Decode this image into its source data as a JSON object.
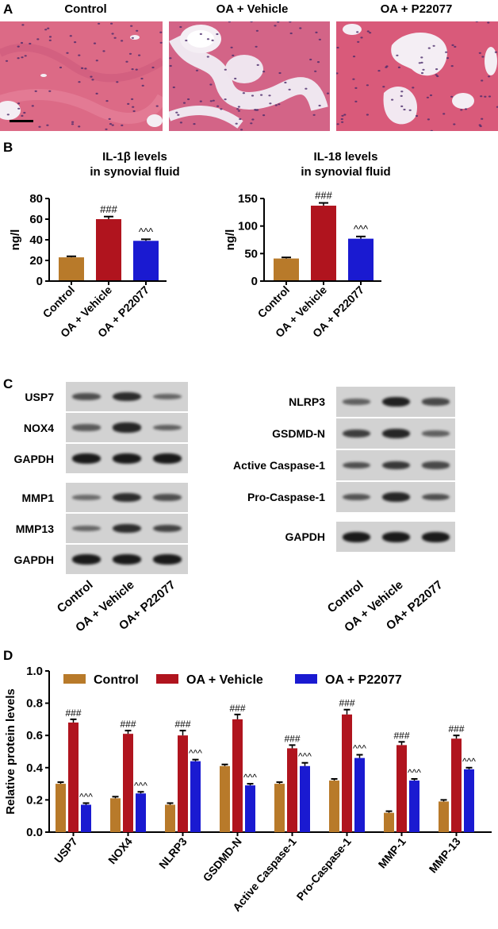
{
  "panel_a": {
    "letter": "A",
    "labels": [
      "Control",
      "OA + Vehicle",
      "OA + P22077"
    ],
    "colors": {
      "tissue": "#d9607d",
      "nuclei": "#4a2b6a",
      "space": "#f4eef4"
    }
  },
  "panel_b": {
    "letter": "B",
    "charts": [
      {
        "type": "bar",
        "title_line1": "IL-1β levels",
        "title_line2": "in synovial fluid",
        "ylabel": "ng/l",
        "ylim": [
          0,
          80
        ],
        "yticks": [
          0,
          20,
          40,
          60,
          80
        ],
        "categories": [
          "Control",
          "OA + Vehicle",
          "OA + P22077"
        ],
        "values": [
          23,
          60,
          39
        ],
        "errors": [
          1,
          2.5,
          1.5
        ],
        "markers": [
          "",
          "###",
          "^^^"
        ],
        "colors": [
          "#b87a2a",
          "#b0141e",
          "#1a1ad1"
        ]
      },
      {
        "type": "bar",
        "title_line1": "IL-18 levels",
        "title_line2": "in synovial fluid",
        "ylabel": "ng/l",
        "ylim": [
          0,
          150
        ],
        "yticks": [
          0,
          50,
          100,
          150
        ],
        "categories": [
          "Control",
          "OA + Vehicle",
          "OA + P22077"
        ],
        "values": [
          41,
          137,
          77
        ],
        "errors": [
          2,
          5,
          4
        ],
        "markers": [
          "",
          "###",
          "^^^"
        ],
        "colors": [
          "#b87a2a",
          "#b0141e",
          "#1a1ad1"
        ]
      }
    ]
  },
  "panel_c": {
    "letter": "C",
    "left_blots": [
      {
        "label": "USP7",
        "intensity": [
          0.55,
          0.85,
          0.35
        ]
      },
      {
        "label": "NOX4",
        "intensity": [
          0.45,
          0.9,
          0.4
        ]
      },
      {
        "label": "GAPDH",
        "intensity": [
          1.0,
          1.0,
          1.0
        ]
      },
      {
        "label": "MMP1",
        "intensity": [
          0.3,
          0.85,
          0.55
        ]
      },
      {
        "label": "MMP13",
        "intensity": [
          0.35,
          0.85,
          0.65
        ]
      },
      {
        "label": "GAPDH",
        "intensity": [
          1.0,
          1.0,
          1.0
        ]
      }
    ],
    "right_blots": [
      {
        "label": "NLRP3",
        "intensity": [
          0.4,
          0.95,
          0.6
        ]
      },
      {
        "label": "GSDMD-N",
        "intensity": [
          0.7,
          0.9,
          0.4
        ]
      },
      {
        "label": "Active Caspase-1",
        "intensity": [
          0.55,
          0.75,
          0.6
        ]
      },
      {
        "label": "Pro-Caspase-1",
        "intensity": [
          0.5,
          0.9,
          0.55
        ]
      },
      {
        "label": "GAPDH",
        "intensity": [
          1.0,
          1.0,
          1.0
        ]
      }
    ],
    "left_lanes": [
      "Control",
      "OA + Vehicle",
      "OA+ P22077"
    ],
    "right_lanes": [
      "Control",
      "OA + Vehicle",
      "OA+ P22077"
    ]
  },
  "panel_d": {
    "letter": "D",
    "chart_data": {
      "type": "bar",
      "ylabel": "Relative protein levels",
      "ylim": [
        0,
        1.0
      ],
      "yticks": [
        "0.0",
        "0.2",
        "0.4",
        "0.6",
        "0.8",
        "1.0"
      ],
      "categories": [
        "USP7",
        "NOX4",
        "NLRP3",
        "GSDMD-N",
        "Active Caspase-1",
        "Pro-Caspase-1",
        "MMP-1",
        "MMP-13"
      ],
      "series": [
        {
          "name": "Control",
          "color": "#b87a2a",
          "values": [
            0.3,
            0.21,
            0.17,
            0.41,
            0.3,
            0.32,
            0.12,
            0.19
          ],
          "errors": [
            0.01,
            0.01,
            0.01,
            0.01,
            0.01,
            0.01,
            0.01,
            0.01
          ],
          "markers": [
            "",
            "",
            "",
            "",
            "",
            "",
            "",
            ""
          ]
        },
        {
          "name": "OA + Vehicle",
          "color": "#b0141e",
          "values": [
            0.68,
            0.61,
            0.6,
            0.7,
            0.52,
            0.73,
            0.54,
            0.58
          ],
          "errors": [
            0.02,
            0.02,
            0.03,
            0.03,
            0.02,
            0.03,
            0.02,
            0.02
          ],
          "markers": [
            "###",
            "###",
            "###",
            "###",
            "###",
            "###",
            "###",
            "###"
          ]
        },
        {
          "name": "OA + P22077",
          "color": "#1a1ad1",
          "values": [
            0.17,
            0.24,
            0.44,
            0.29,
            0.41,
            0.46,
            0.32,
            0.39
          ],
          "errors": [
            0.01,
            0.01,
            0.01,
            0.01,
            0.02,
            0.02,
            0.01,
            0.01
          ],
          "markers": [
            "^^^",
            "^^^",
            "^^^",
            "^^^",
            "^^^",
            "^^^",
            "^^^",
            "^^^"
          ]
        }
      ],
      "legend_position": "top"
    }
  }
}
